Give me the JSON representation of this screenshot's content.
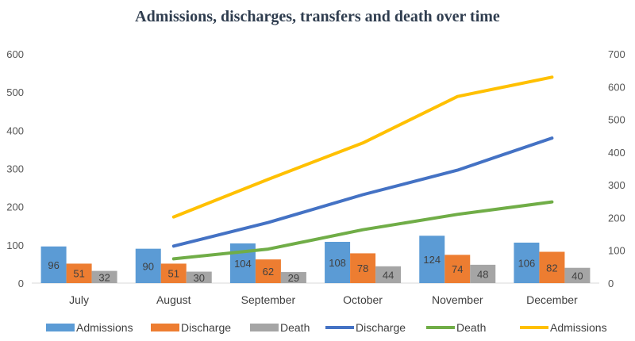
{
  "chart_data": {
    "type": "bar",
    "title": "Admissions, discharges, transfers and death over time",
    "categories": [
      "July",
      "August",
      "September",
      "October",
      "November",
      "December"
    ],
    "bar_series": [
      {
        "name": "Admissions",
        "values": [
          96,
          90,
          104,
          108,
          124,
          106
        ],
        "color": "#5b9bd5",
        "axis": "left"
      },
      {
        "name": "Discharge",
        "values": [
          51,
          51,
          62,
          78,
          74,
          82
        ],
        "color": "#ed7d31",
        "axis": "left"
      },
      {
        "name": "Death",
        "values": [
          32,
          30,
          29,
          44,
          48,
          40
        ],
        "color": "#a5a5a5",
        "axis": "left"
      }
    ],
    "line_series": [
      {
        "name": "Discharge",
        "values": [
          null,
          113,
          185,
          270,
          345,
          443
        ],
        "color": "#4472c4",
        "axis": "right"
      },
      {
        "name": "Death",
        "values": [
          null,
          74,
          104,
          163,
          210,
          248
        ],
        "color": "#70ad47",
        "axis": "right"
      },
      {
        "name": "Admissions",
        "values": [
          null,
          202,
          317,
          428,
          570,
          629
        ],
        "color": "#ffc000",
        "axis": "right"
      }
    ],
    "y_left": {
      "min": 0,
      "max": 600,
      "ticks": [
        "0",
        "100",
        "200",
        "300",
        "400",
        "500",
        "600"
      ]
    },
    "y_right": {
      "min": 0,
      "max": 700,
      "ticks": [
        "0",
        "100",
        "200",
        "300",
        "400",
        "500",
        "600",
        "700"
      ]
    },
    "grid": false,
    "legend_position": "bottom"
  }
}
